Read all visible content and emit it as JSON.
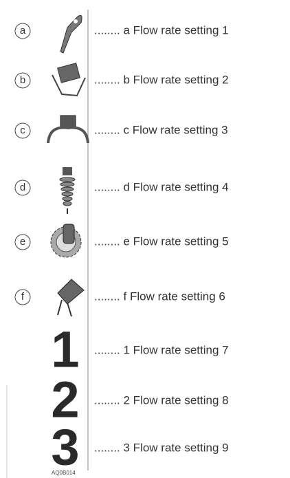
{
  "rows": [
    {
      "symbol": "a",
      "text": "........ a Flow rate setting 1"
    },
    {
      "symbol": "b",
      "text": "........ b Flow rate setting 2"
    },
    {
      "symbol": "c",
      "text": "........ c Flow rate setting 3"
    },
    {
      "symbol": "d",
      "text": "........ d Flow rate setting 4"
    },
    {
      "symbol": "e",
      "text": "........ e Flow rate setting 5"
    },
    {
      "symbol": "f",
      "text": "........ f  Flow rate setting 6"
    },
    {
      "symbol": "1",
      "text": "........ 1 Flow rate setting 7"
    },
    {
      "symbol": "2",
      "text": "........ 2 Flow rate setting 8"
    },
    {
      "symbol": "3",
      "text": "........ 3 Flow rate setting 9"
    }
  ],
  "figure_id": "AQ0B014"
}
